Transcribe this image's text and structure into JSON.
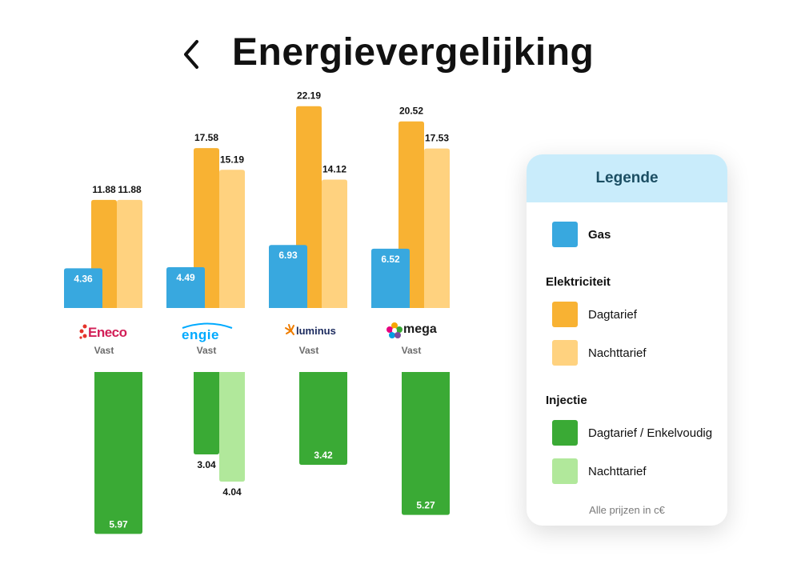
{
  "header": {
    "title": "Energievergelijking",
    "back_icon": "chevron-left-icon"
  },
  "colors": {
    "gas": "#38a8df",
    "elec_day": "#f8b233",
    "elec_night": "#ffd27f",
    "inj_day": "#3aaa35",
    "inj_night": "#b1e89b"
  },
  "chart_data": {
    "type": "bar",
    "title": "Energievergelijking",
    "unit": "c€",
    "categories": [
      "Eneco",
      "Engie",
      "Luminus",
      "Mega"
    ],
    "contract_type": [
      "Vast",
      "Vast",
      "Vast",
      "Vast"
    ],
    "series": [
      {
        "name": "Gas",
        "group": "",
        "values": [
          4.36,
          4.49,
          6.93,
          6.52
        ]
      },
      {
        "name": "Dagtarief",
        "group": "Elektriciteit",
        "values": [
          11.88,
          17.58,
          22.19,
          20.52
        ]
      },
      {
        "name": "Nachttarief",
        "group": "Elektriciteit",
        "values": [
          11.88,
          15.19,
          14.12,
          17.53
        ]
      },
      {
        "name": "Dagtarief / Enkelvoudig",
        "group": "Injectie",
        "values": [
          5.97,
          3.04,
          3.42,
          5.27
        ]
      },
      {
        "name": "Nachttarief",
        "group": "Injectie",
        "values": [
          null,
          4.04,
          null,
          null
        ]
      }
    ]
  },
  "providers": [
    {
      "name": "Eneco",
      "type": "Vast"
    },
    {
      "name": "engie",
      "type": "Vast"
    },
    {
      "name": "luminus",
      "type": "Vast"
    },
    {
      "name": "mega",
      "type": "Vast"
    }
  ],
  "legend": {
    "title": "Legende",
    "gas_label": "Gas",
    "elec_title": "Elektriciteit",
    "elec_day_label": "Dagtarief",
    "elec_night_label": "Nachttarief",
    "inj_title": "Injectie",
    "inj_day_label": "Dagtarief / Enkelvoudig",
    "inj_night_label": "Nachttarief",
    "note": "Alle prijzen in c€"
  }
}
